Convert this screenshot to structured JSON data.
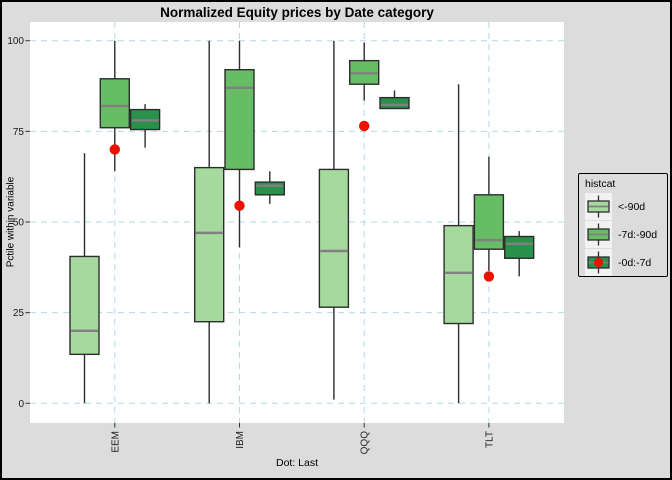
{
  "chart_data": {
    "type": "boxplot",
    "title": "Normalized Equity prices by Date category",
    "ylabel": "Pctile within variable",
    "xlabel": "Dot: Last",
    "ylim": [
      0,
      100
    ],
    "y_ticks": [
      0,
      25,
      50,
      75,
      100
    ],
    "grid": "dashed-lightblue",
    "legend_title": "histcat",
    "legend_position": "right",
    "categories": [
      "EEM",
      "IBM",
      "QQQ",
      "TLT"
    ],
    "series": [
      {
        "name": "<-90d",
        "color": "#a6d99e",
        "boxes": [
          {
            "lo": 0,
            "q1": 13.5,
            "med": 20,
            "q3": 40.5,
            "hi": 69
          },
          {
            "lo": 0,
            "q1": 22.5,
            "med": 47,
            "q3": 65,
            "hi": 100
          },
          {
            "lo": 1,
            "q1": 26.5,
            "med": 42,
            "q3": 64.5,
            "hi": 100
          },
          {
            "lo": 0,
            "q1": 22,
            "med": 36,
            "q3": 49,
            "hi": 88
          }
        ]
      },
      {
        "name": "-7d:-90d",
        "color": "#67bd66",
        "boxes": [
          {
            "lo": 64,
            "q1": 76,
            "med": 82,
            "q3": 89.5,
            "hi": 100
          },
          {
            "lo": 43,
            "q1": 64.5,
            "med": 87,
            "q3": 92,
            "hi": 100
          },
          {
            "lo": 83.5,
            "q1": 88,
            "med": 91,
            "q3": 94.5,
            "hi": 99.5
          },
          {
            "lo": 36.5,
            "q1": 42.5,
            "med": 45,
            "q3": 57.5,
            "hi": 68
          }
        ]
      },
      {
        "name": "-0d:-7d",
        "color": "#28914a",
        "boxes": [
          {
            "lo": 70.5,
            "q1": 75.5,
            "med": 78,
            "q3": 81,
            "hi": 82.5
          },
          {
            "lo": 55,
            "q1": 57.5,
            "med": 60,
            "q3": 61,
            "hi": 64
          },
          {
            "lo": 81.3,
            "q1": 81.3,
            "med": 82.3,
            "q3": 84.3,
            "hi": 86.3
          },
          {
            "lo": 35,
            "q1": 40,
            "med": 44,
            "q3": 46,
            "hi": 47.5
          }
        ]
      }
    ],
    "dot_series_index": 2,
    "dots": {
      "name": "Last",
      "values": [
        70,
        54.5,
        76.5,
        35
      ]
    }
  },
  "colors": {
    "figure_bg": "#dcdcdc",
    "panel_bg": "#ffffff",
    "grid": "#b2d9e6",
    "box_border": "#2d2d2d",
    "median": "#808080",
    "whisker": "#2d2d2d",
    "dot": "#ee1100",
    "tick_text": "#1a1a1a",
    "tick_mark": "#333333"
  }
}
